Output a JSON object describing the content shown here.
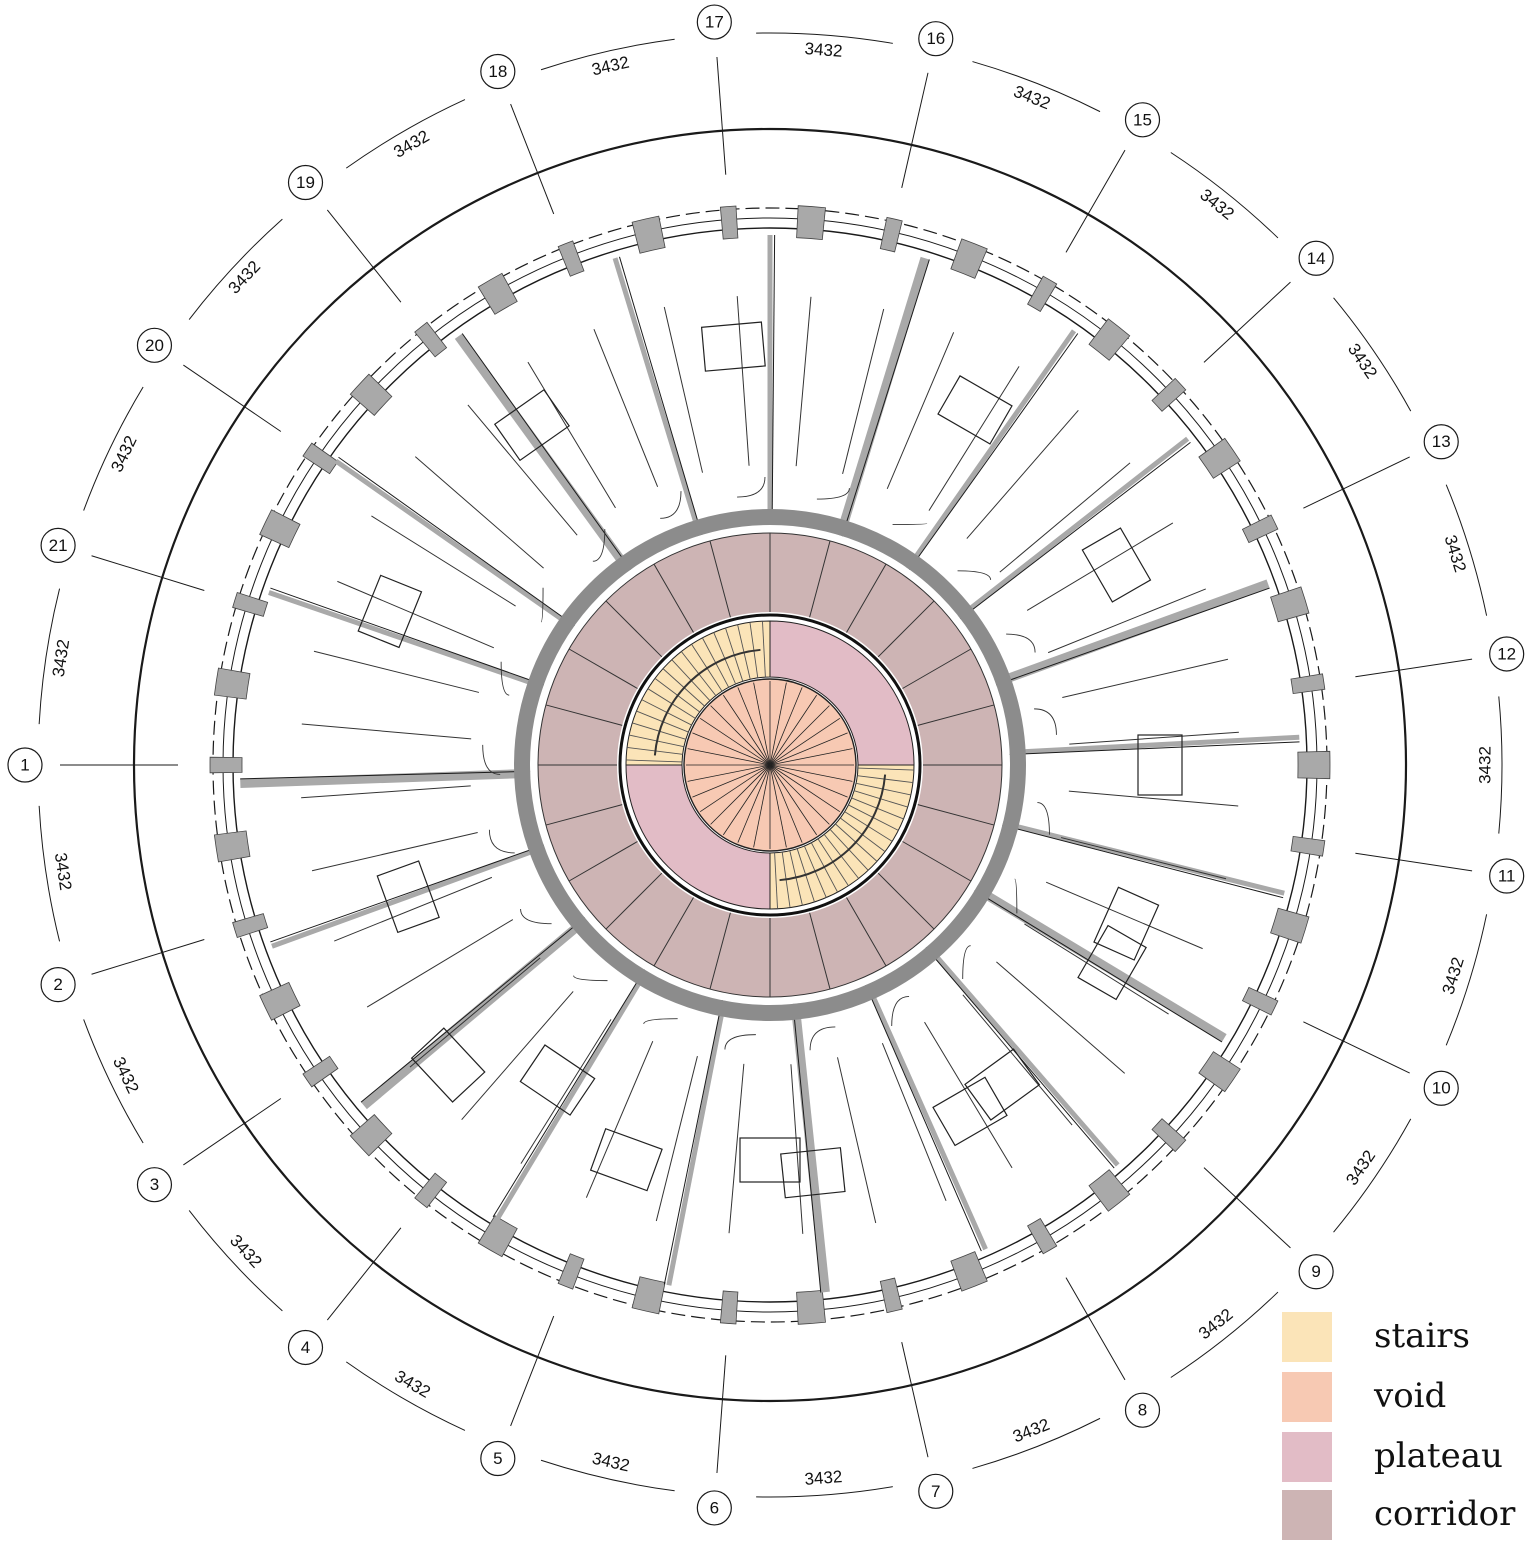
{
  "grid_axes": [
    {
      "label": "1"
    },
    {
      "label": "2"
    },
    {
      "label": "3"
    },
    {
      "label": "4"
    },
    {
      "label": "5"
    },
    {
      "label": "6"
    },
    {
      "label": "7"
    },
    {
      "label": "8"
    },
    {
      "label": "9"
    },
    {
      "label": "10"
    },
    {
      "label": "11"
    },
    {
      "label": "12"
    },
    {
      "label": "13"
    },
    {
      "label": "14"
    },
    {
      "label": "15"
    },
    {
      "label": "16"
    },
    {
      "label": "17"
    },
    {
      "label": "18"
    },
    {
      "label": "19"
    },
    {
      "label": "20"
    },
    {
      "label": "21"
    }
  ],
  "dimension_label": "3432",
  "legend": [
    {
      "label": "stairs",
      "color": "#fbe4b8"
    },
    {
      "label": "void",
      "color": "#f7c9b3"
    },
    {
      "label": "plateau",
      "color": "#e2bcc6"
    },
    {
      "label": "corridor",
      "color": "#cdb4b4"
    }
  ],
  "colors": {
    "stairs": "#fbe4b8",
    "void": "#f7c9b3",
    "plateau": "#e2bcc6",
    "corridor": "#cdb4b4",
    "wall": "#a9a9a9",
    "line": "#1a1a1a"
  }
}
